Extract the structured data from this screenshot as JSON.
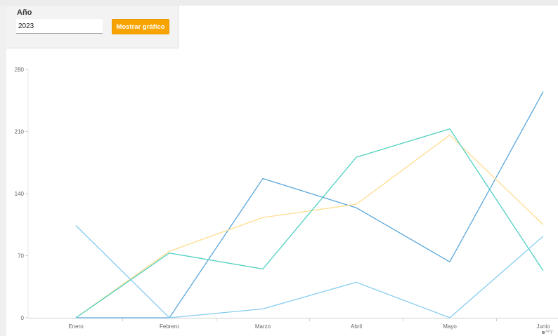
{
  "form": {
    "year_label": "Año",
    "year_value": "2023",
    "button_label": "Mostrar gráfico"
  },
  "watermark": {
    "text": "Any"
  },
  "chart_data": {
    "type": "line",
    "title": "",
    "xlabel": "",
    "ylabel": "",
    "categories": [
      "Enero",
      "Febrero",
      "Marzo",
      "Abril",
      "Mayo",
      "Junio"
    ],
    "ylim": [
      0,
      280
    ],
    "yticks": [
      0,
      70,
      140,
      210,
      280
    ],
    "grid": false,
    "legend": "none",
    "series": [
      {
        "color": "#5aa7db",
        "values": [
          0,
          0,
          157,
          124,
          63,
          255
        ]
      },
      {
        "color": "#ffdd8f",
        "values": [
          0,
          75,
          113,
          128,
          206,
          105
        ]
      },
      {
        "color": "#4fd1c0",
        "values": [
          0,
          73,
          55,
          181,
          213,
          53
        ]
      },
      {
        "color": "#86cdf0",
        "values": [
          104,
          0,
          10,
          40,
          0,
          92
        ]
      }
    ]
  }
}
